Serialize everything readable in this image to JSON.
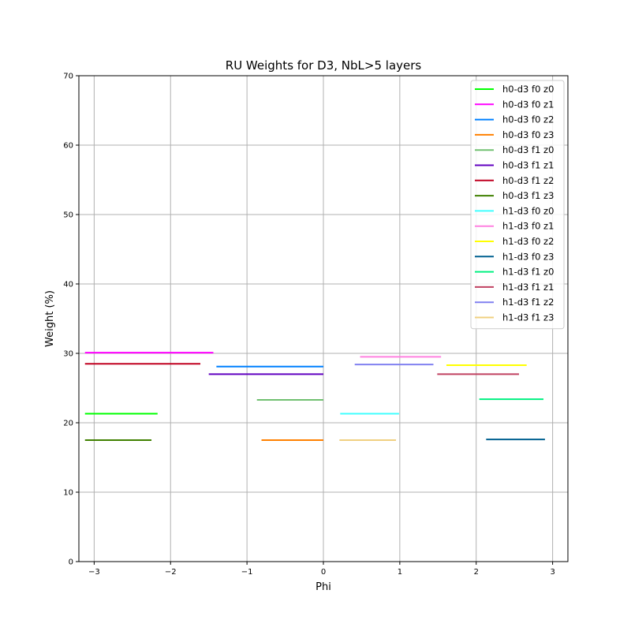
{
  "chart_data": {
    "type": "line",
    "title": "RU Weights for D3, NbL>5 layers",
    "xlabel": "Phi",
    "ylabel": "Weight (%)",
    "xlim": [
      -3.2,
      3.2
    ],
    "ylim": [
      0,
      70
    ],
    "xticks": [
      -3,
      -2,
      -1,
      0,
      1,
      2,
      3
    ],
    "xtick_labels": [
      "−3",
      "−2",
      "−1",
      "0",
      "1",
      "2",
      "3"
    ],
    "yticks": [
      0,
      10,
      20,
      30,
      40,
      50,
      60,
      70
    ],
    "ytick_labels": [
      "0",
      "10",
      "20",
      "30",
      "40",
      "50",
      "60",
      "70"
    ],
    "grid": true,
    "legend_position": "top-right",
    "series": [
      {
        "name": "h0-d3 f0 z0",
        "color": "#00ff00",
        "x": [
          -3.12,
          -2.17
        ],
        "y": [
          21.3,
          21.3
        ]
      },
      {
        "name": "h0-d3 f0 z1",
        "color": "#ff00ff",
        "x": [
          -3.12,
          -1.44
        ],
        "y": [
          30.1,
          30.1
        ]
      },
      {
        "name": "h0-d3 f0 z2",
        "color": "#0080ff",
        "x": [
          -1.4,
          0.0
        ],
        "y": [
          28.1,
          28.1
        ]
      },
      {
        "name": "h0-d3 f0 z3",
        "color": "#ff8000",
        "x": [
          -0.81,
          0.0
        ],
        "y": [
          17.5,
          17.5
        ]
      },
      {
        "name": "h0-d3 f1 z0",
        "color": "#70c070",
        "x": [
          -0.87,
          0.0
        ],
        "y": [
          23.3,
          23.3
        ]
      },
      {
        "name": "h0-d3 f1 z1",
        "color": "#6000c0",
        "x": [
          -1.5,
          0.0
        ],
        "y": [
          27.0,
          27.0
        ]
      },
      {
        "name": "h0-d3 f1 z2",
        "color": "#c00020",
        "x": [
          -3.12,
          -1.61
        ],
        "y": [
          28.5,
          28.5
        ]
      },
      {
        "name": "h0-d3 f1 z3",
        "color": "#408000",
        "x": [
          -3.12,
          -2.25
        ],
        "y": [
          17.5,
          17.5
        ]
      },
      {
        "name": "h1-d3 f0 z0",
        "color": "#40ffff",
        "x": [
          0.22,
          0.99
        ],
        "y": [
          21.3,
          21.3
        ]
      },
      {
        "name": "h1-d3 f0 z1",
        "color": "#ff80e0",
        "x": [
          0.48,
          1.54
        ],
        "y": [
          29.5,
          29.5
        ]
      },
      {
        "name": "h1-d3 f0 z2",
        "color": "#ffff00",
        "x": [
          1.61,
          2.66
        ],
        "y": [
          28.3,
          28.3
        ]
      },
      {
        "name": "h1-d3 f0 z3",
        "color": "#006090",
        "x": [
          2.13,
          2.9
        ],
        "y": [
          17.6,
          17.6
        ]
      },
      {
        "name": "h1-d3 f1 z0",
        "color": "#00f080",
        "x": [
          2.04,
          2.88
        ],
        "y": [
          23.4,
          23.4
        ]
      },
      {
        "name": "h1-d3 f1 z1",
        "color": "#c04060",
        "x": [
          1.49,
          2.56
        ],
        "y": [
          27.0,
          27.0
        ]
      },
      {
        "name": "h1-d3 f1 z2",
        "color": "#8080f0",
        "x": [
          0.41,
          1.44
        ],
        "y": [
          28.4,
          28.4
        ]
      },
      {
        "name": "h1-d3 f1 z3",
        "color": "#f0d080",
        "x": [
          0.21,
          0.95
        ],
        "y": [
          17.5,
          17.5
        ]
      }
    ]
  }
}
